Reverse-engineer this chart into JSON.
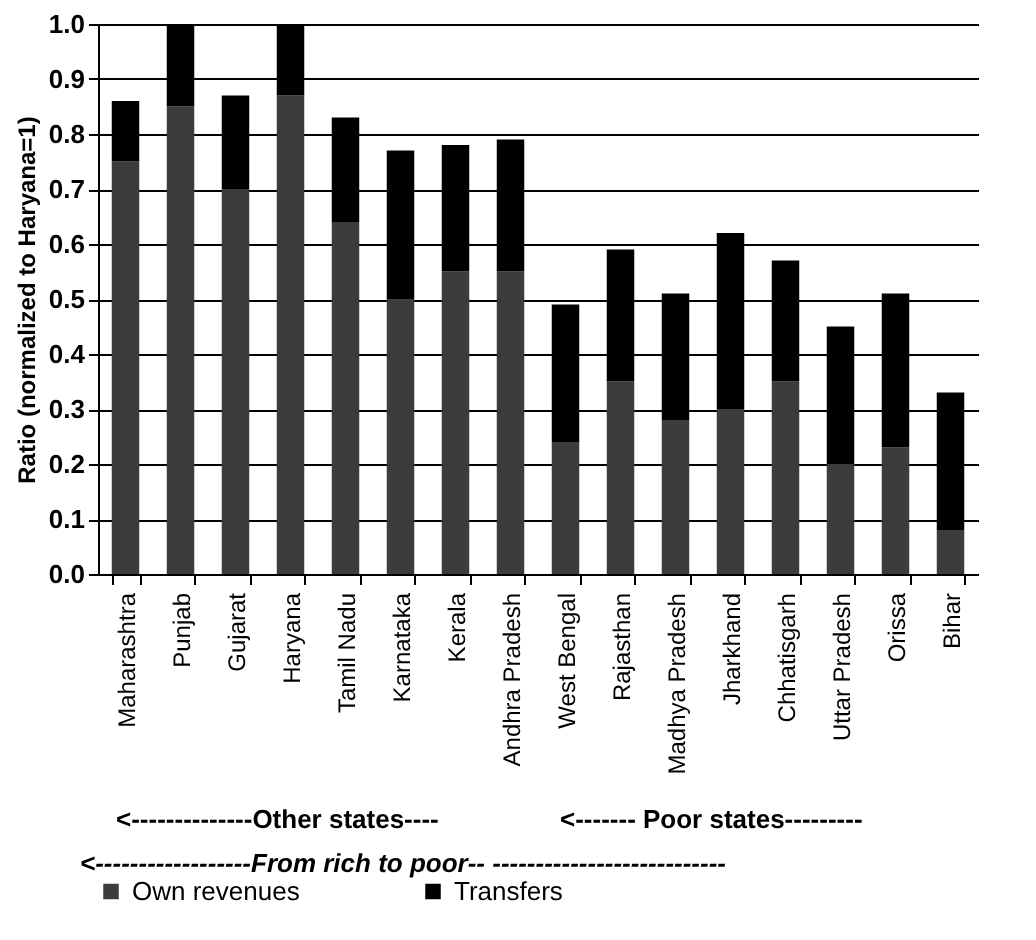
{
  "chart_data": {
    "type": "bar",
    "stacked": true,
    "ylabel": "Ratio (normalized to Haryana=1)",
    "categories": [
      "Maharashtra",
      "Punjab",
      "Gujarat",
      "Haryana",
      "Tamil Nadu",
      "Karnataka",
      "Kerala",
      "Andhra Pradesh",
      "West Bengal",
      "Rajasthan",
      "Madhya Pradesh",
      "Jharkhand",
      "Chhatisgarh",
      "Uttar Pradesh",
      "Orissa",
      "Bihar"
    ],
    "series": [
      {
        "name": "Own revenues",
        "color": "#3c3c3c",
        "values": [
          0.75,
          0.85,
          0.7,
          0.87,
          0.64,
          0.5,
          0.55,
          0.55,
          0.24,
          0.35,
          0.28,
          0.3,
          0.35,
          0.2,
          0.23,
          0.08
        ]
      },
      {
        "name": "Transfers",
        "color": "#000000",
        "values": [
          0.11,
          0.15,
          0.17,
          0.13,
          0.19,
          0.27,
          0.23,
          0.24,
          0.25,
          0.24,
          0.23,
          0.32,
          0.22,
          0.25,
          0.28,
          0.25
        ]
      }
    ],
    "ylim": [
      0,
      1
    ],
    "yticks": [
      {
        "value": 0,
        "label": "0.0"
      },
      0.1,
      0.2,
      0.3,
      0.4,
      0.5,
      0.6,
      0.7,
      0.8,
      0.9,
      {
        "value": 1,
        "label": "1.0"
      }
    ],
    "grid": "y",
    "legend": "bottom",
    "annotations": [
      "<--------------Other states----",
      "<------- Poor states---------",
      "<------------------From rich to poor-- ---------------------------"
    ]
  }
}
